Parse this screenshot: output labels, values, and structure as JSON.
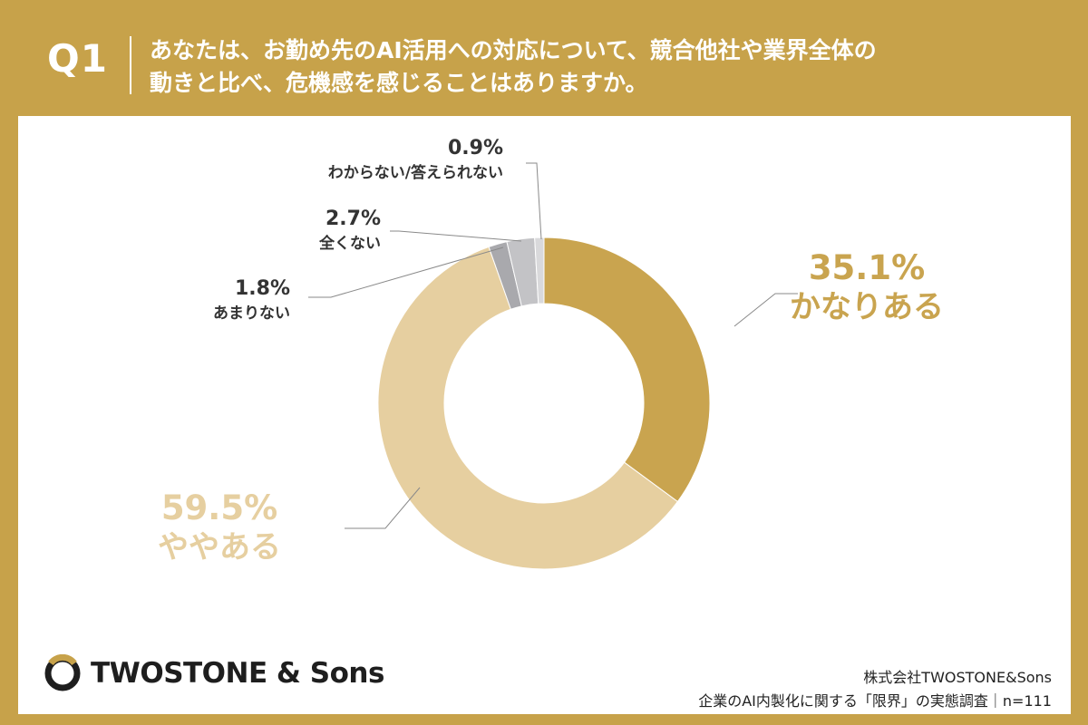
{
  "header": {
    "question_number": "Q1",
    "question_line1": "あなたは、お勤め先のAI活用への対応について、競合他社や業界全体の",
    "question_line2": "動きと比べ、危機感を感じることはありますか。"
  },
  "chart_data": {
    "type": "pie",
    "donut": true,
    "slices": [
      {
        "label": "かなりある",
        "value": 35.1,
        "value_label": "35.1%",
        "color": "#c9a44f"
      },
      {
        "label": "ややある",
        "value": 59.5,
        "value_label": "59.5%",
        "color": "#e6cfa0"
      },
      {
        "label": "あまりない",
        "value": 1.8,
        "value_label": "1.8%",
        "color": "#a9a9ad"
      },
      {
        "label": "全くない",
        "value": 2.7,
        "value_label": "2.7%",
        "color": "#c3c3c6"
      },
      {
        "label": "わからない/答えられない",
        "value": 0.9,
        "value_label": "0.9%",
        "color": "#d9d9db"
      }
    ]
  },
  "footer": {
    "logo_text": "TWOSTONE & Sons",
    "company": "株式会社TWOSTONE&Sons",
    "survey": "企業のAI内製化に関する「限界」の実態調査｜n=111"
  }
}
